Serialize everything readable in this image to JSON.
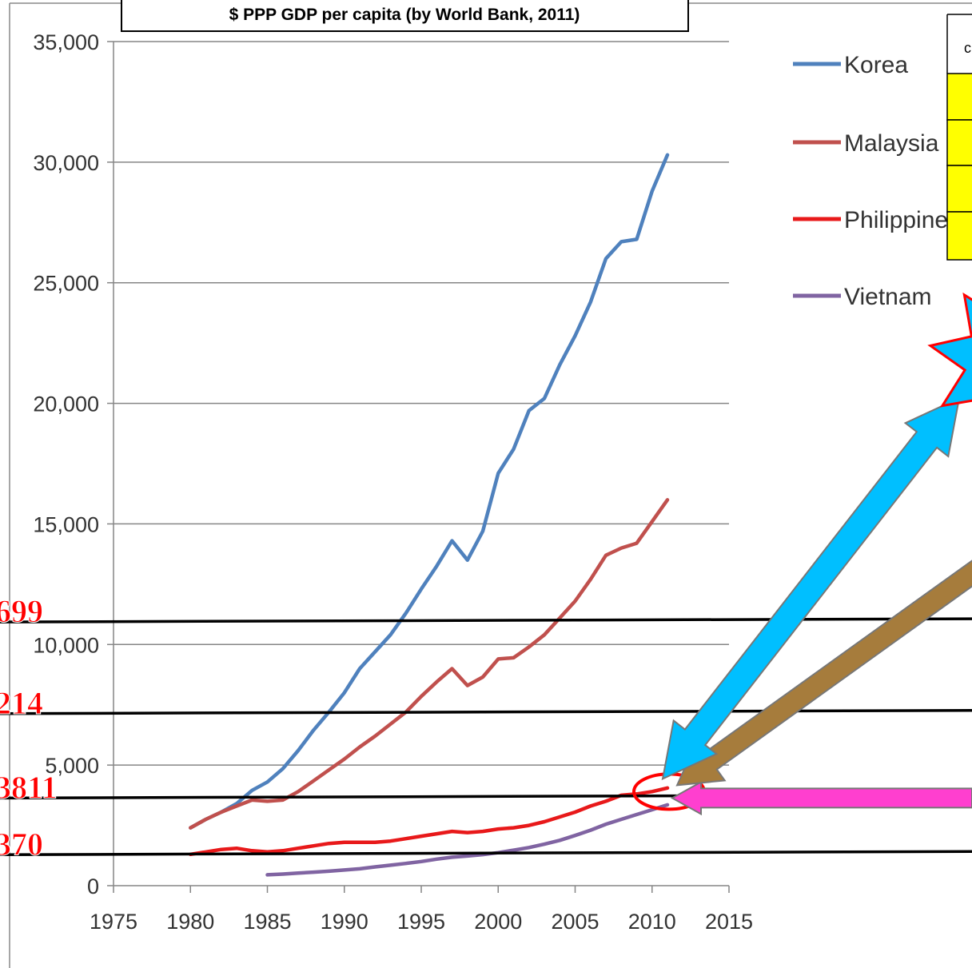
{
  "chart_data": {
    "type": "line",
    "title": "$ PPP GDP per capita (by World Bank, 2011)",
    "xlabel": "",
    "ylabel": "",
    "xlim": [
      1975,
      2015
    ],
    "ylim": [
      0,
      35000
    ],
    "x_ticks": [
      1975,
      1980,
      1985,
      1990,
      1995,
      2000,
      2005,
      2010,
      2015
    ],
    "y_ticks": [
      0,
      5000,
      10000,
      15000,
      20000,
      25000,
      30000,
      35000
    ],
    "y_tick_labels": [
      "0",
      "5,000",
      "10,000",
      "15,000",
      "20,000",
      "25,000",
      "30,000",
      "35,000"
    ],
    "grid": "horizontal",
    "legend_placement": "right",
    "series": [
      {
        "name": "Korea",
        "color": "#4f81bd",
        "x": [
          1980,
          1981,
          1982,
          1983,
          1984,
          1985,
          1986,
          1987,
          1988,
          1989,
          1990,
          1991,
          1992,
          1993,
          1994,
          1995,
          1996,
          1997,
          1998,
          1999,
          2000,
          2001,
          2002,
          2003,
          2004,
          2005,
          2006,
          2007,
          2008,
          2009,
          2010,
          2011
        ],
        "y": [
          2400,
          2750,
          3050,
          3400,
          3950,
          4300,
          4850,
          5600,
          6450,
          7200,
          8000,
          9000,
          9700,
          10400,
          11300,
          12300,
          13250,
          14300,
          13500,
          14700,
          17100,
          18100,
          19700,
          20200,
          21600,
          22800,
          24200,
          26000,
          26700,
          26800,
          28800,
          30300
        ]
      },
      {
        "name": "Malaysia",
        "color": "#c0504d",
        "x": [
          1980,
          1981,
          1982,
          1983,
          1984,
          1985,
          1986,
          1987,
          1988,
          1989,
          1990,
          1991,
          1992,
          1993,
          1994,
          1995,
          1996,
          1997,
          1998,
          1999,
          2000,
          2001,
          2002,
          2003,
          2004,
          2005,
          2006,
          2007,
          2008,
          2009,
          2010,
          2011
        ],
        "y": [
          2400,
          2750,
          3050,
          3300,
          3550,
          3500,
          3550,
          3900,
          4350,
          4800,
          5250,
          5750,
          6200,
          6700,
          7200,
          7850,
          8450,
          9000,
          8300,
          8650,
          9400,
          9450,
          9900,
          10400,
          11100,
          11800,
          12700,
          13700,
          14000,
          14200,
          15100,
          16000
        ]
      },
      {
        "name": "Philippines",
        "color": "#e8191a",
        "x": [
          1980,
          1981,
          1982,
          1983,
          1984,
          1985,
          1986,
          1987,
          1988,
          1989,
          1990,
          1991,
          1992,
          1993,
          1994,
          1995,
          1996,
          1997,
          1998,
          1999,
          2000,
          2001,
          2002,
          2003,
          2004,
          2005,
          2006,
          2007,
          2008,
          2009,
          2010,
          2011
        ],
        "y": [
          1300,
          1400,
          1500,
          1550,
          1450,
          1400,
          1450,
          1550,
          1650,
          1750,
          1800,
          1800,
          1800,
          1850,
          1950,
          2050,
          2150,
          2250,
          2200,
          2250,
          2350,
          2400,
          2500,
          2650,
          2850,
          3050,
          3300,
          3500,
          3750,
          3800,
          3900,
          4050
        ]
      },
      {
        "name": "Vietnam",
        "color": "#8064a2",
        "x": [
          1985,
          1986,
          1987,
          1988,
          1989,
          1990,
          1991,
          1992,
          1993,
          1994,
          1995,
          1996,
          1997,
          1998,
          1999,
          2000,
          2001,
          2002,
          2003,
          2004,
          2005,
          2006,
          2007,
          2008,
          2009,
          2010,
          2011
        ],
        "y": [
          450,
          480,
          520,
          560,
          600,
          650,
          700,
          780,
          850,
          920,
          1000,
          1100,
          1180,
          1230,
          1290,
          1370,
          1470,
          1580,
          1720,
          1880,
          2080,
          2300,
          2550,
          2750,
          2950,
          3150,
          3350
        ]
      }
    ],
    "reference_lines": [
      {
        "label": "699",
        "y": 11000
      },
      {
        "label": "214",
        "y": 7200
      },
      {
        "label": "3811",
        "y": 3700
      },
      {
        "label": "370",
        "y": 1350
      }
    ],
    "highlight_point": {
      "x": 2011,
      "y": 3700
    }
  },
  "table": {
    "header": "c"
  },
  "colors": {
    "axis": "#868686",
    "grid": "#868686",
    "ref_line": "#000000",
    "red_label": "#ff0000",
    "table_fill": "#ffff00",
    "arrow_cyan": "#00bfff",
    "arrow_brown": "#a67c3c",
    "arrow_magenta": "#ff3fcf",
    "highlight_ellipse": "#ff0000",
    "star_fill": "#00bfff",
    "star_stroke": "#ff0000"
  }
}
